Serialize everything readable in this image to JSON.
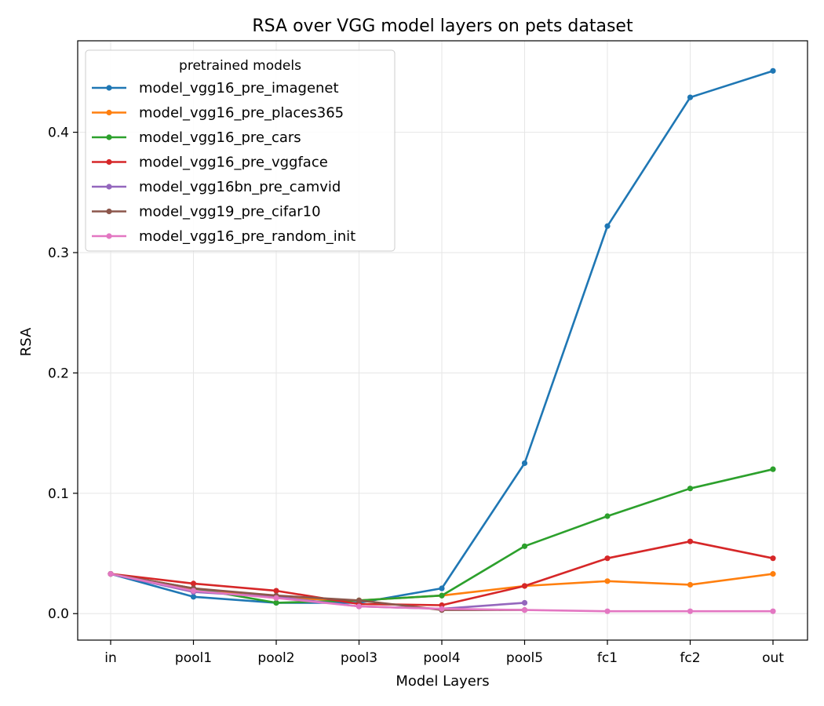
{
  "chart_data": {
    "type": "line",
    "title": "RSA over VGG model layers on pets dataset",
    "xlabel": "Model Layers",
    "ylabel": "RSA",
    "categories": [
      "in",
      "pool1",
      "pool2",
      "pool3",
      "pool4",
      "pool5",
      "fc1",
      "fc2",
      "out"
    ],
    "yticks": [
      "0.0",
      "0.1",
      "0.2",
      "0.3",
      "0.4"
    ],
    "ylim": [
      -0.022,
      0.476
    ],
    "grid": true,
    "legend": {
      "title": "pretrained models",
      "placement": "top-left"
    },
    "series": [
      {
        "name": "model_vgg16_pre_imagenet",
        "color": "#1f77b4",
        "values": [
          0.033,
          0.014,
          0.009,
          0.009,
          0.021,
          0.125,
          0.322,
          0.429,
          0.451
        ]
      },
      {
        "name": "model_vgg16_pre_places365",
        "color": "#ff7f0e",
        "values": [
          0.033,
          0.02,
          0.013,
          0.011,
          0.015,
          0.023,
          0.027,
          0.024,
          0.033
        ]
      },
      {
        "name": "model_vgg16_pre_cars",
        "color": "#2ca02c",
        "values": [
          0.033,
          0.021,
          0.009,
          0.011,
          0.015,
          0.056,
          0.081,
          0.104,
          0.12
        ]
      },
      {
        "name": "model_vgg16_pre_vggface",
        "color": "#d62728",
        "values": [
          0.033,
          0.025,
          0.019,
          0.008,
          0.007,
          0.023,
          0.046,
          0.06,
          0.046
        ]
      },
      {
        "name": "model_vgg16bn_pre_camvid",
        "color": "#9467bd",
        "values": [
          0.033,
          0.018,
          0.014,
          0.006,
          0.004,
          0.009,
          null,
          null,
          null
        ]
      },
      {
        "name": "model_vgg19_pre_cifar10",
        "color": "#8c564b",
        "values": [
          0.033,
          0.021,
          0.015,
          0.011,
          0.003,
          0.003,
          null,
          null,
          null
        ]
      },
      {
        "name": "model_vgg16_pre_random_init",
        "color": "#e377c2",
        "values": [
          0.033,
          0.019,
          0.013,
          0.006,
          0.004,
          0.003,
          0.002,
          0.002,
          0.002
        ]
      }
    ]
  }
}
